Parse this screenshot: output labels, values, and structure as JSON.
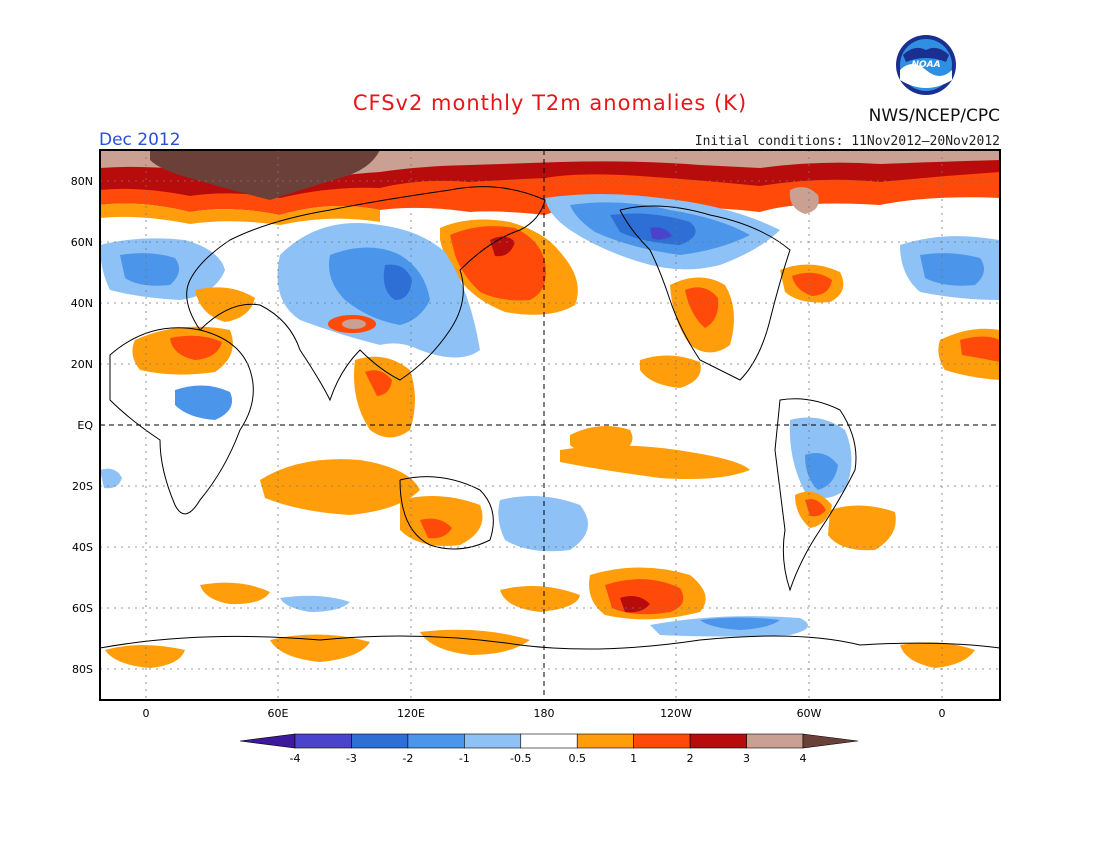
{
  "header": {
    "title": "CFSv2 monthly T2m anomalies (K)",
    "title_color": "#e8141a",
    "month": "Dec 2012",
    "month_color": "#2a4fd6",
    "initial_conditions": "Initial conditions: 11Nov2012–20Nov2012",
    "agency": "NWS/NCEP/CPC",
    "logo_text": "NOAA"
  },
  "map": {
    "lat_labels": [
      "80N",
      "60N",
      "40N",
      "20N",
      "EQ",
      "20S",
      "40S",
      "60S",
      "80S"
    ],
    "lon_labels": [
      "0",
      "60E",
      "120E",
      "180",
      "120W",
      "60W",
      "0"
    ]
  },
  "legend": {
    "tick_labels": [
      "-4",
      "-3",
      "-2",
      "-1",
      "-0.5",
      "0.5",
      "1",
      "2",
      "3",
      "4"
    ],
    "colors": [
      "#3d1a9c",
      "#4a44cc",
      "#2e6fd6",
      "#4b95ea",
      "#8ec1f5",
      "#ffffff",
      "#ff9e0a",
      "#ff4a0a",
      "#b80c0c",
      "#c9a092",
      "#6b4038"
    ]
  }
}
